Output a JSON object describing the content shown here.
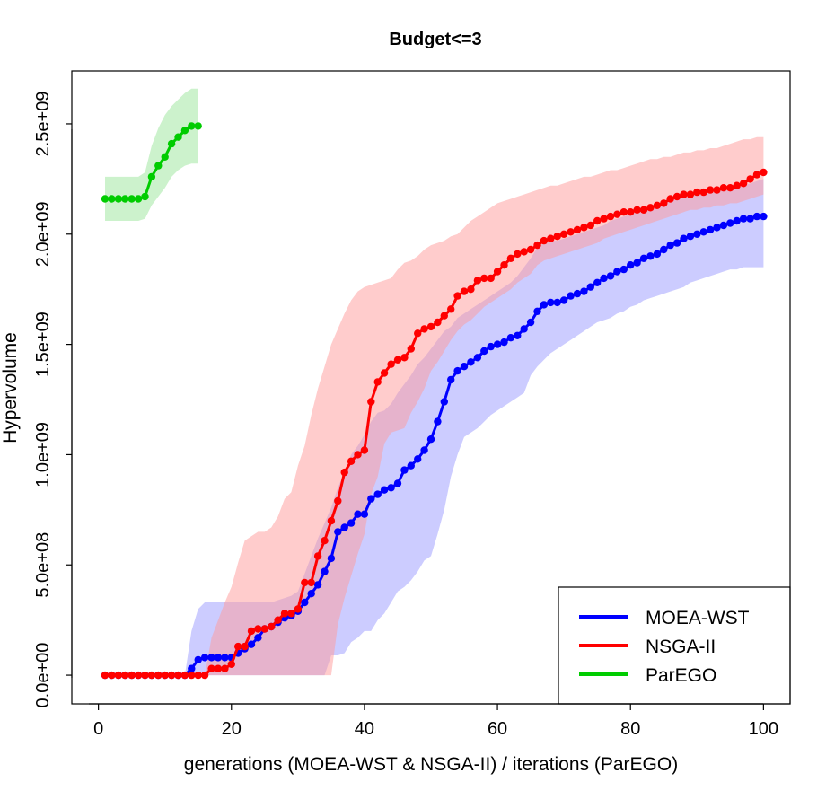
{
  "chart_data": {
    "type": "line",
    "title": "Budget<=3",
    "xlabel": "generations (MOEA-WST & NSGA-II) / iterations (ParEGO)",
    "ylabel": "Hypervolume",
    "xlim": [
      -4,
      104
    ],
    "ylim": [
      -130000000,
      2740000000
    ],
    "xticks": [
      0,
      20,
      40,
      60,
      80,
      100
    ],
    "xtick_labels": [
      "0",
      "20",
      "40",
      "60",
      "80",
      "100"
    ],
    "yticks": [
      0,
      500000000,
      1000000000,
      1500000000,
      2000000000,
      2500000000
    ],
    "ytick_labels": [
      "0.0e+00",
      "5.0e+08",
      "1.0e+09",
      "1.5e+09",
      "2.0e+09",
      "2.5e+09"
    ],
    "legend_position": "bottom-right",
    "series": [
      {
        "name": "MOEA-WST",
        "color": "#0000ff",
        "band_color": "#9999ff",
        "x_start": 1,
        "values": [
          0,
          0,
          0,
          0,
          0,
          0,
          0,
          0,
          0,
          0,
          0,
          0,
          0,
          30000000,
          70000000,
          80000000,
          80000000,
          80000000,
          80000000,
          80000000,
          100000000,
          120000000,
          140000000,
          170000000,
          210000000,
          220000000,
          240000000,
          260000000,
          270000000,
          290000000,
          330000000,
          370000000,
          410000000,
          470000000,
          530000000,
          650000000,
          670000000,
          690000000,
          730000000,
          730000000,
          800000000,
          820000000,
          840000000,
          850000000,
          870000000,
          930000000,
          950000000,
          980000000,
          1020000000,
          1070000000,
          1150000000,
          1240000000,
          1340000000,
          1380000000,
          1400000000,
          1420000000,
          1440000000,
          1470000000,
          1490000000,
          1500000000,
          1510000000,
          1530000000,
          1540000000,
          1570000000,
          1600000000,
          1650000000,
          1680000000,
          1690000000,
          1690000000,
          1700000000,
          1720000000,
          1730000000,
          1740000000,
          1760000000,
          1780000000,
          1800000000,
          1810000000,
          1830000000,
          1840000000,
          1860000000,
          1870000000,
          1890000000,
          1900000000,
          1910000000,
          1930000000,
          1950000000,
          1960000000,
          1980000000,
          1990000000,
          2000000000,
          2010000000,
          2020000000,
          2030000000,
          2040000000,
          2050000000,
          2060000000,
          2070000000,
          2070000000,
          2080000000,
          2080000000
        ],
        "lower": [
          0,
          0,
          0,
          0,
          0,
          0,
          0,
          0,
          0,
          0,
          0,
          0,
          0,
          0,
          0,
          0,
          0,
          0,
          0,
          0,
          0,
          0,
          0,
          0,
          0,
          0,
          0,
          0,
          0,
          0,
          0,
          0,
          0,
          0,
          90000000,
          90000000,
          100000000,
          150000000,
          170000000,
          200000000,
          200000000,
          250000000,
          280000000,
          330000000,
          380000000,
          400000000,
          430000000,
          470000000,
          520000000,
          540000000,
          640000000,
          750000000,
          900000000,
          1000000000,
          1080000000,
          1100000000,
          1120000000,
          1150000000,
          1180000000,
          1200000000,
          1220000000,
          1240000000,
          1260000000,
          1280000000,
          1360000000,
          1400000000,
          1430000000,
          1460000000,
          1480000000,
          1500000000,
          1520000000,
          1540000000,
          1560000000,
          1580000000,
          1600000000,
          1610000000,
          1620000000,
          1640000000,
          1650000000,
          1670000000,
          1680000000,
          1700000000,
          1710000000,
          1720000000,
          1730000000,
          1740000000,
          1750000000,
          1760000000,
          1780000000,
          1790000000,
          1800000000,
          1810000000,
          1820000000,
          1830000000,
          1840000000,
          1840000000,
          1850000000,
          1850000000,
          1850000000,
          1850000000
        ],
        "upper": [
          0,
          0,
          0,
          0,
          0,
          0,
          0,
          0,
          0,
          0,
          0,
          0,
          0,
          200000000,
          300000000,
          330000000,
          330000000,
          330000000,
          330000000,
          330000000,
          330000000,
          330000000,
          330000000,
          330000000,
          330000000,
          330000000,
          340000000,
          350000000,
          360000000,
          380000000,
          460000000,
          540000000,
          620000000,
          690000000,
          760000000,
          850000000,
          920000000,
          1000000000,
          1040000000,
          1090000000,
          1150000000,
          1190000000,
          1200000000,
          1230000000,
          1280000000,
          1320000000,
          1360000000,
          1410000000,
          1440000000,
          1480000000,
          1520000000,
          1560000000,
          1580000000,
          1620000000,
          1640000000,
          1660000000,
          1680000000,
          1700000000,
          1720000000,
          1740000000,
          1760000000,
          1780000000,
          1810000000,
          1850000000,
          1890000000,
          1940000000,
          1960000000,
          1970000000,
          1970000000,
          1980000000,
          1990000000,
          2000000000,
          2010000000,
          2020000000,
          2030000000,
          2040000000,
          2060000000,
          2070000000,
          2080000000,
          2090000000,
          2100000000,
          2110000000,
          2120000000,
          2130000000,
          2140000000,
          2150000000,
          2160000000,
          2170000000,
          2170000000,
          2180000000,
          2180000000,
          2190000000,
          2190000000,
          2200000000,
          2200000000,
          2210000000,
          2220000000,
          2230000000,
          2240000000,
          2250000000
        ]
      },
      {
        "name": "NSGA-II",
        "color": "#ff0000",
        "band_color": "#ff9999",
        "x_start": 1,
        "values": [
          0,
          0,
          0,
          0,
          0,
          0,
          0,
          0,
          0,
          0,
          0,
          0,
          0,
          0,
          0,
          0,
          30000000,
          30000000,
          30000000,
          50000000,
          130000000,
          130000000,
          200000000,
          210000000,
          210000000,
          220000000,
          250000000,
          280000000,
          280000000,
          300000000,
          420000000,
          420000000,
          540000000,
          610000000,
          700000000,
          790000000,
          920000000,
          970000000,
          1000000000,
          1020000000,
          1240000000,
          1330000000,
          1370000000,
          1410000000,
          1430000000,
          1440000000,
          1480000000,
          1550000000,
          1570000000,
          1580000000,
          1600000000,
          1630000000,
          1660000000,
          1720000000,
          1740000000,
          1750000000,
          1790000000,
          1800000000,
          1800000000,
          1830000000,
          1860000000,
          1890000000,
          1910000000,
          1920000000,
          1930000000,
          1950000000,
          1970000000,
          1980000000,
          1990000000,
          2000000000,
          2010000000,
          2020000000,
          2030000000,
          2040000000,
          2060000000,
          2070000000,
          2080000000,
          2090000000,
          2100000000,
          2100000000,
          2110000000,
          2110000000,
          2120000000,
          2130000000,
          2140000000,
          2160000000,
          2170000000,
          2180000000,
          2180000000,
          2190000000,
          2190000000,
          2200000000,
          2200000000,
          2210000000,
          2210000000,
          2220000000,
          2230000000,
          2250000000,
          2270000000,
          2280000000
        ],
        "lower": [
          0,
          0,
          0,
          0,
          0,
          0,
          0,
          0,
          0,
          0,
          0,
          0,
          0,
          0,
          0,
          0,
          0,
          0,
          0,
          0,
          0,
          0,
          0,
          0,
          0,
          0,
          0,
          0,
          0,
          0,
          0,
          0,
          0,
          0,
          0,
          230000000,
          350000000,
          450000000,
          550000000,
          640000000,
          820000000,
          900000000,
          1050000000,
          1100000000,
          1110000000,
          1120000000,
          1190000000,
          1240000000,
          1300000000,
          1380000000,
          1420000000,
          1470000000,
          1520000000,
          1560000000,
          1590000000,
          1610000000,
          1640000000,
          1670000000,
          1690000000,
          1710000000,
          1730000000,
          1750000000,
          1780000000,
          1800000000,
          1820000000,
          1860000000,
          1880000000,
          1890000000,
          1900000000,
          1910000000,
          1920000000,
          1930000000,
          1940000000,
          1950000000,
          1960000000,
          1980000000,
          1990000000,
          2000000000,
          2010000000,
          2020000000,
          2030000000,
          2040000000,
          2050000000,
          2060000000,
          2070000000,
          2080000000,
          2090000000,
          2100000000,
          2110000000,
          2110000000,
          2120000000,
          2120000000,
          2130000000,
          2130000000,
          2140000000,
          2140000000,
          2150000000,
          2160000000,
          2170000000,
          2180000000
        ],
        "upper": [
          0,
          0,
          0,
          0,
          0,
          0,
          0,
          0,
          0,
          0,
          0,
          0,
          0,
          0,
          0,
          0,
          170000000,
          250000000,
          330000000,
          400000000,
          510000000,
          610000000,
          630000000,
          650000000,
          650000000,
          670000000,
          720000000,
          800000000,
          830000000,
          950000000,
          1040000000,
          1180000000,
          1300000000,
          1400000000,
          1500000000,
          1570000000,
          1640000000,
          1700000000,
          1740000000,
          1760000000,
          1770000000,
          1780000000,
          1790000000,
          1800000000,
          1840000000,
          1870000000,
          1880000000,
          1900000000,
          1930000000,
          1950000000,
          1960000000,
          1970000000,
          1990000000,
          2000000000,
          2030000000,
          2060000000,
          2080000000,
          2100000000,
          2120000000,
          2140000000,
          2150000000,
          2160000000,
          2170000000,
          2180000000,
          2190000000,
          2200000000,
          2210000000,
          2220000000,
          2220000000,
          2230000000,
          2240000000,
          2250000000,
          2260000000,
          2260000000,
          2270000000,
          2280000000,
          2290000000,
          2290000000,
          2300000000,
          2310000000,
          2320000000,
          2330000000,
          2340000000,
          2340000000,
          2350000000,
          2350000000,
          2360000000,
          2370000000,
          2370000000,
          2380000000,
          2380000000,
          2390000000,
          2390000000,
          2400000000,
          2410000000,
          2420000000,
          2430000000,
          2430000000,
          2440000000,
          2440000000
        ]
      },
      {
        "name": "ParEGO",
        "color": "#00cc00",
        "band_color": "#99e699",
        "x_start": 1,
        "values": [
          2160000000,
          2160000000,
          2160000000,
          2160000000,
          2160000000,
          2160000000,
          2170000000,
          2260000000,
          2310000000,
          2350000000,
          2410000000,
          2440000000,
          2470000000,
          2490000000,
          2490000000
        ],
        "lower": [
          2060000000,
          2060000000,
          2060000000,
          2060000000,
          2060000000,
          2060000000,
          2070000000,
          2130000000,
          2170000000,
          2210000000,
          2260000000,
          2290000000,
          2310000000,
          2320000000,
          2320000000
        ],
        "upper": [
          2260000000,
          2260000000,
          2260000000,
          2260000000,
          2260000000,
          2260000000,
          2280000000,
          2400000000,
          2480000000,
          2540000000,
          2580000000,
          2610000000,
          2640000000,
          2660000000,
          2660000000
        ]
      }
    ]
  }
}
